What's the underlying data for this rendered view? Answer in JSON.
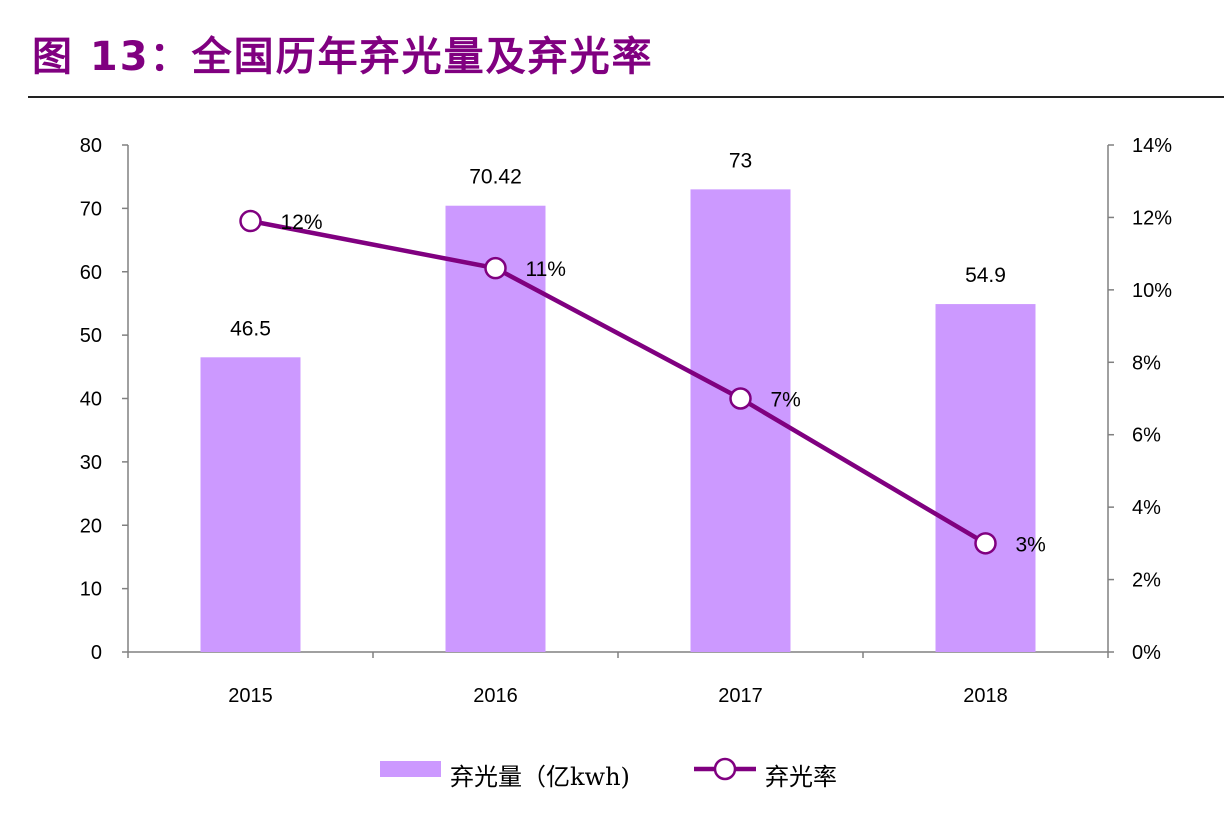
{
  "title": "图 13：全国历年弃光量及弃光率",
  "chart_data": {
    "type": "bar+line",
    "title": "图 13：全国历年弃光量及弃光率",
    "categories": [
      "2015",
      "2016",
      "2017",
      "2018"
    ],
    "series": [
      {
        "name": "弃光量（亿kwh)",
        "type": "bar",
        "axis": "left",
        "values": [
          46.5,
          70.42,
          73,
          54.9
        ],
        "labels": [
          "46.5",
          "70.42",
          "73",
          "54.9"
        ],
        "color": "#cc99ff"
      },
      {
        "name": "弃光率",
        "type": "line",
        "axis": "right",
        "values": [
          11.9,
          10.6,
          7.0,
          3.0
        ],
        "labels": [
          "12%",
          "11%",
          "7%",
          "3%"
        ],
        "color": "#800080"
      }
    ],
    "left_axis": {
      "ylim": [
        0,
        80
      ],
      "ticks": [
        "0",
        "10",
        "20",
        "30",
        "40",
        "50",
        "60",
        "70",
        "80"
      ]
    },
    "right_axis": {
      "ylim": [
        0,
        14
      ],
      "ticks": [
        "0%",
        "2%",
        "4%",
        "6%",
        "8%",
        "10%",
        "12%",
        "14%"
      ]
    },
    "grid": false,
    "legend": "bottom"
  }
}
